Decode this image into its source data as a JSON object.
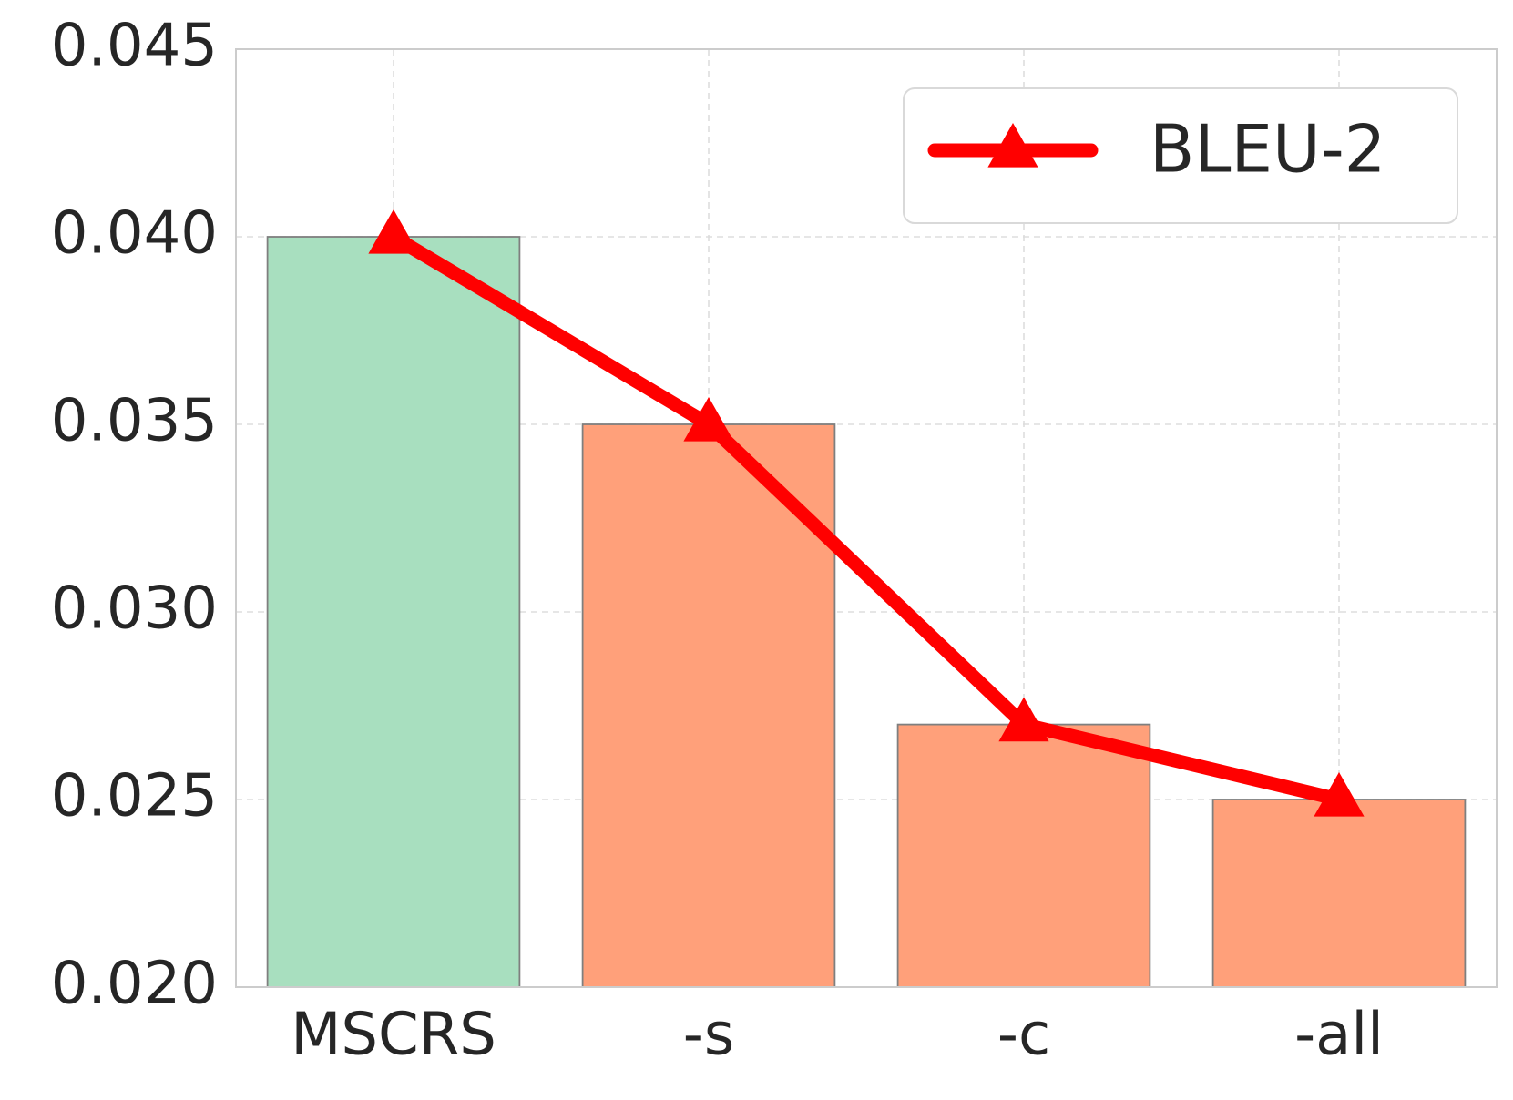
{
  "chart_data": {
    "type": "bar",
    "categories": [
      "MSCRS",
      "-s",
      "-c",
      "-all"
    ],
    "bar_values": [
      0.04,
      0.035,
      0.027,
      0.025
    ],
    "bar_colors": [
      "#a8dfbf",
      "#ffa07a",
      "#ffa07a",
      "#ffa07a"
    ],
    "series": [
      {
        "name": "BLEU-2",
        "type": "line",
        "marker": "triangle",
        "color": "#ff0000",
        "values": [
          0.04,
          0.035,
          0.027,
          0.025
        ]
      }
    ],
    "ylim": [
      0.02,
      0.045
    ],
    "yticks": [
      "0.020",
      "0.025",
      "0.030",
      "0.035",
      "0.040",
      "0.045"
    ],
    "xlabel": "",
    "ylabel": "",
    "title": "",
    "grid": true,
    "legend_position": "top-right"
  }
}
